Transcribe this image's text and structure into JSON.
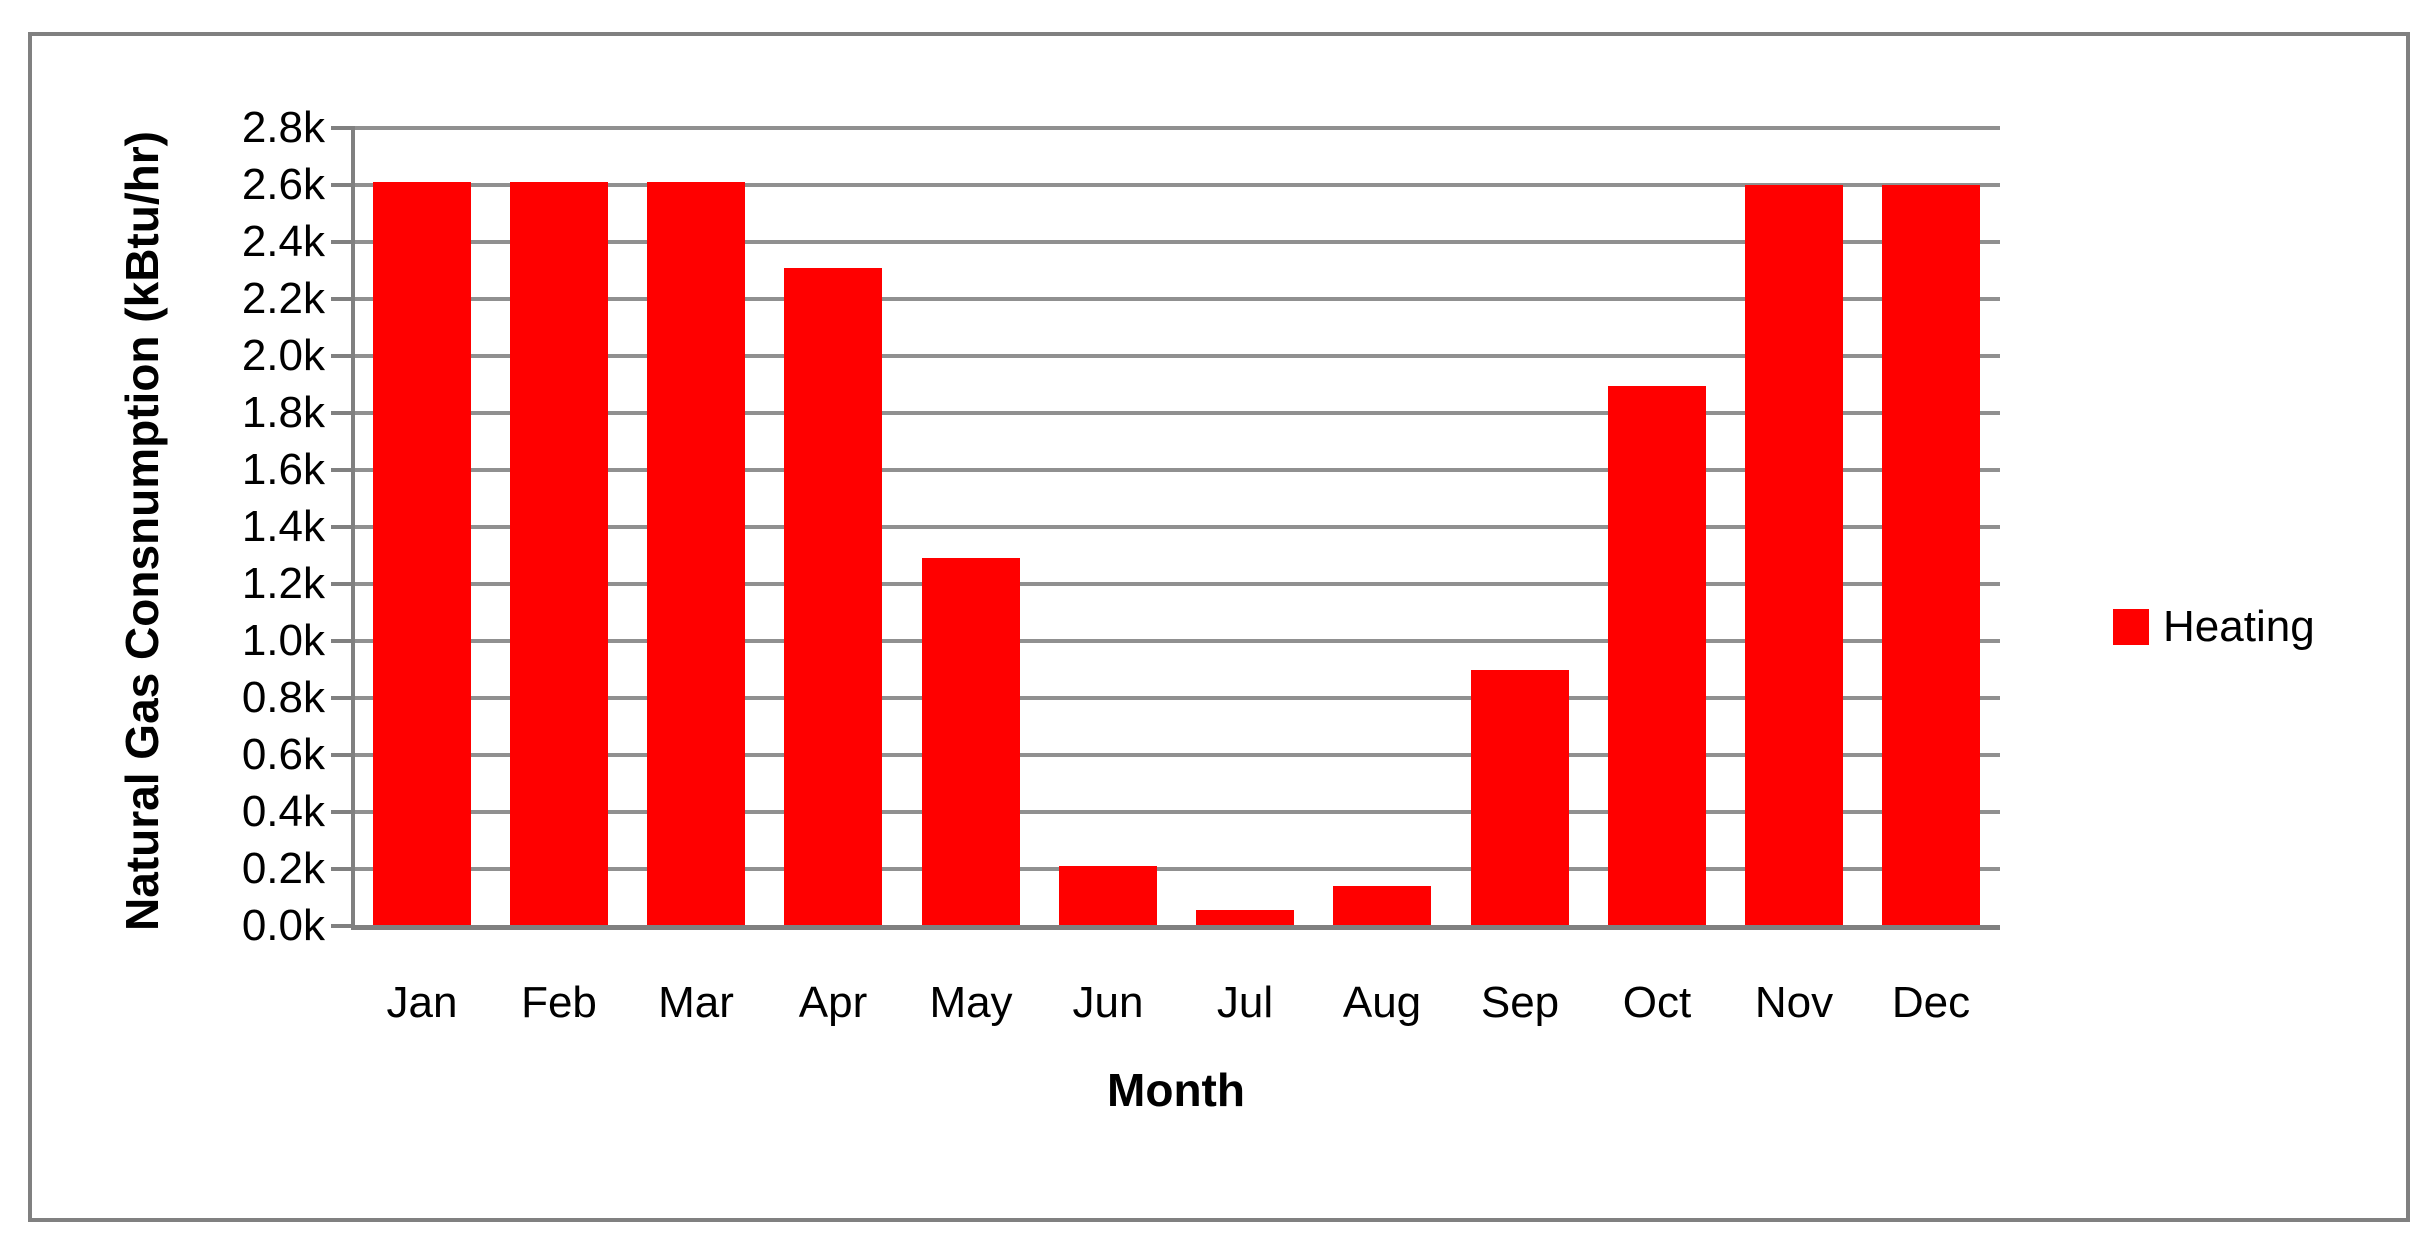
{
  "figure": {
    "background": "#FFFFFF",
    "border_color": "#808080"
  },
  "chart_data": {
    "type": "bar",
    "title": "",
    "xlabel": "Month",
    "ylabel": "Natural Gas Consnumption (kBtu/hr)",
    "categories": [
      "Jan",
      "Feb",
      "Mar",
      "Apr",
      "May",
      "Jun",
      "Jul",
      "Aug",
      "Sep",
      "Oct",
      "Nov",
      "Dec"
    ],
    "series": [
      {
        "name": "Heating",
        "color": "#FF0000",
        "values": [
          2610,
          2610,
          2610,
          2310,
          1290,
          210,
          55,
          140,
          900,
          1895,
          2600,
          2600
        ]
      }
    ],
    "ylim": [
      0,
      2800
    ],
    "y_tick_step": 200,
    "y_tick_labels": [
      "0.0k",
      "0.2k",
      "0.4k",
      "0.6k",
      "0.8k",
      "1.0k",
      "1.2k",
      "1.4k",
      "1.6k",
      "1.8k",
      "2.0k",
      "2.2k",
      "2.4k",
      "2.6k",
      "2.8k"
    ],
    "grid": "horizontal-only",
    "gridline_color": "#909090",
    "axis_color": "#808080",
    "text_color": "#000000",
    "legend": {
      "position": "right",
      "entries": [
        {
          "label": "Heating",
          "color": "#FF0000"
        }
      ]
    }
  }
}
